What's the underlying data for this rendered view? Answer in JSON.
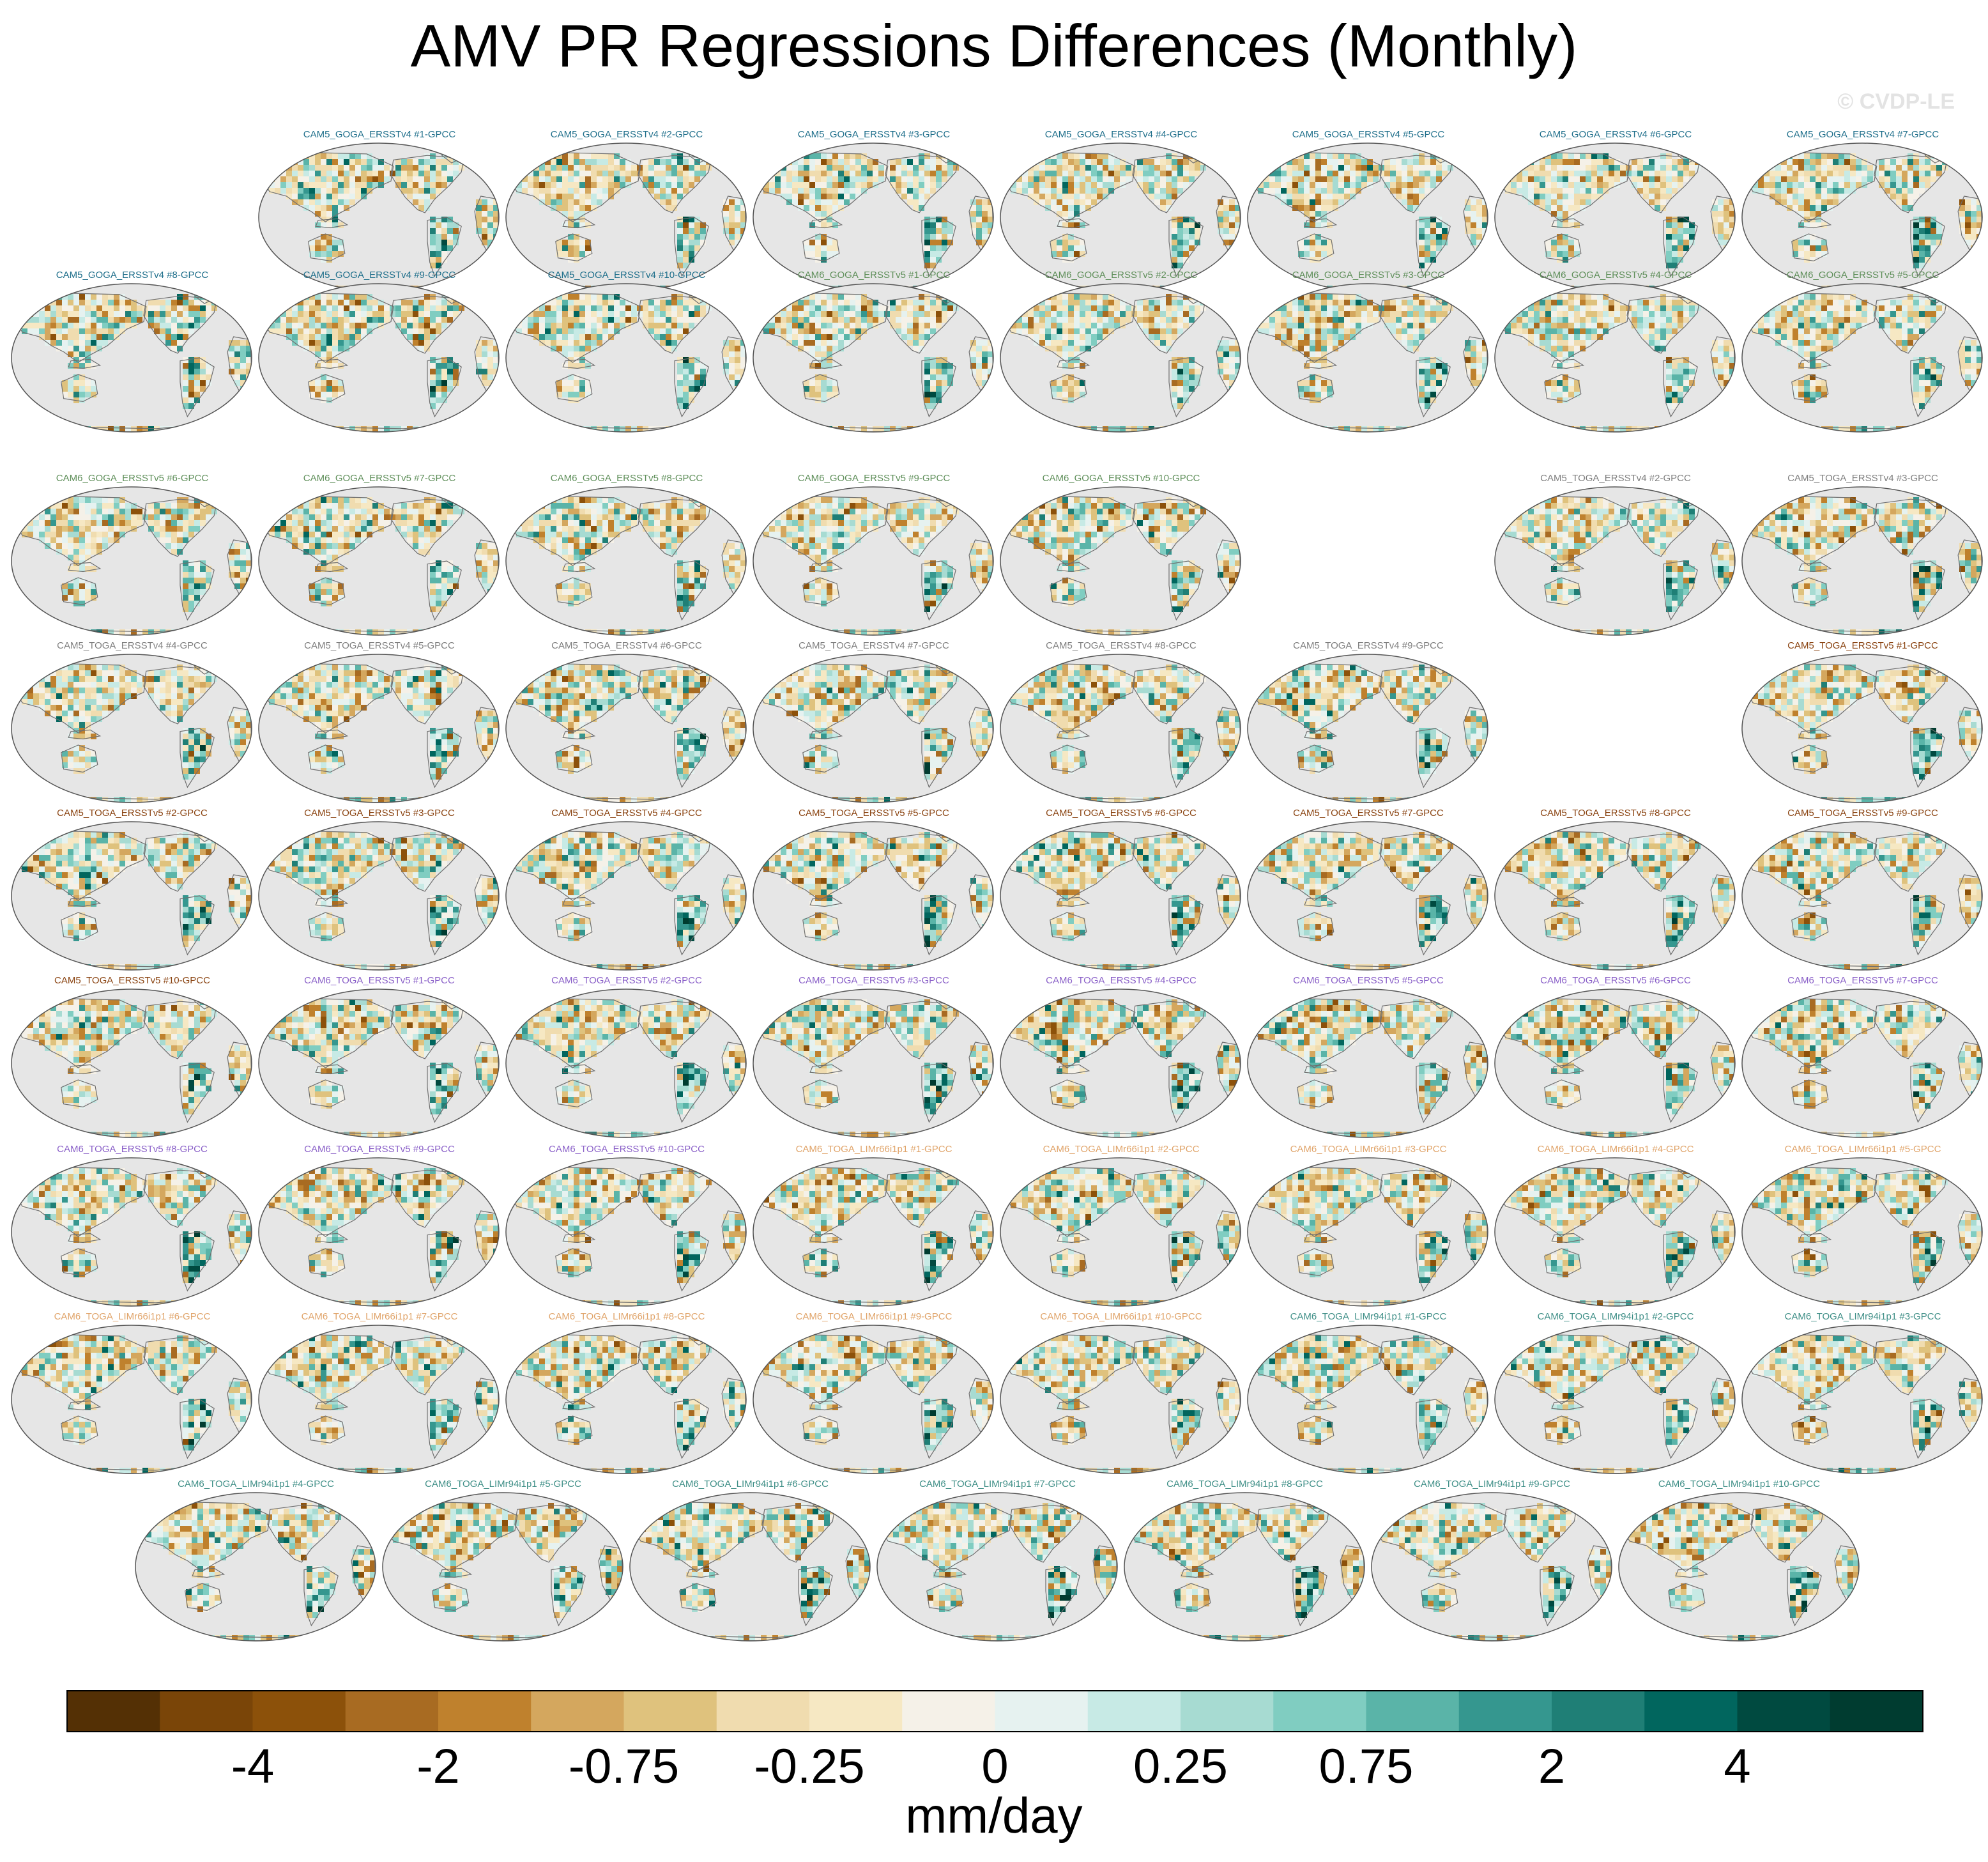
{
  "title": "AMV PR Regressions Differences (Monthly)",
  "watermark": "© CVDP-LE",
  "chart_data": {
    "type": "heatmap",
    "projection": "Robinson, Pacific-centered global maps",
    "variable": "PR regression difference vs GPCC",
    "units": "mm/day",
    "colorbar": {
      "levels": [
        -5,
        -4,
        -3,
        -2,
        -1,
        -0.75,
        -0.5,
        -0.25,
        -0.1,
        0,
        0.1,
        0.25,
        0.5,
        0.75,
        1,
        2,
        3,
        4,
        5
      ],
      "tick_labels": [
        "-4",
        "-2",
        "-0.75",
        "-0.25",
        "0",
        "0.25",
        "0.75",
        "2",
        "4"
      ],
      "colors": [
        "#543005",
        "#7a4508",
        "#8c510a",
        "#a86b22",
        "#bf812d",
        "#d4a75e",
        "#dfc27d",
        "#f0dcaf",
        "#f6e8c3",
        "#f5f1e8",
        "#e6f2f0",
        "#c7eae5",
        "#a7dbd2",
        "#80cdc1",
        "#5ab4a8",
        "#35978f",
        "#1f7f76",
        "#01665e",
        "#004a40",
        "#003c30"
      ],
      "label": "mm/day"
    },
    "panel_rows": [
      {
        "slots": [
          1,
          2,
          3,
          4,
          5,
          6,
          7
        ],
        "panels": [
          {
            "title": "CAM5_GOGA_ERSSTv4 #1-GPCC",
            "group": "cam5_goga_v4"
          },
          {
            "title": "CAM5_GOGA_ERSSTv4 #2-GPCC",
            "group": "cam5_goga_v4"
          },
          {
            "title": "CAM5_GOGA_ERSSTv4 #3-GPCC",
            "group": "cam5_goga_v4"
          },
          {
            "title": "CAM5_GOGA_ERSSTv4 #4-GPCC",
            "group": "cam5_goga_v4"
          },
          {
            "title": "CAM5_GOGA_ERSSTv4 #5-GPCC",
            "group": "cam5_goga_v4"
          },
          {
            "title": "CAM5_GOGA_ERSSTv4 #6-GPCC",
            "group": "cam5_goga_v4"
          },
          {
            "title": "CAM5_GOGA_ERSSTv4 #7-GPCC",
            "group": "cam5_goga_v4"
          }
        ]
      },
      {
        "slots": [
          0,
          1,
          2,
          3,
          4,
          5,
          6,
          7
        ],
        "panels": [
          {
            "title": "CAM5_GOGA_ERSSTv4 #8-GPCC",
            "group": "cam5_goga_v4"
          },
          {
            "title": "CAM5_GOGA_ERSSTv4 #9-GPCC",
            "group": "cam5_goga_v4"
          },
          {
            "title": "CAM5_GOGA_ERSSTv4 #10-GPCC",
            "group": "cam5_goga_v4"
          },
          {
            "title": "CAM6_GOGA_ERSSTv5 #1-GPCC",
            "group": "cam6_goga_v5"
          },
          {
            "title": "CAM6_GOGA_ERSSTv5 #2-GPCC",
            "group": "cam6_goga_v5"
          },
          {
            "title": "CAM6_GOGA_ERSSTv5 #3-GPCC",
            "group": "cam6_goga_v5"
          },
          {
            "title": "CAM6_GOGA_ERSSTv5 #4-GPCC",
            "group": "cam6_goga_v5"
          },
          {
            "title": "CAM6_GOGA_ERSSTv5 #5-GPCC",
            "group": "cam6_goga_v5"
          }
        ]
      },
      {
        "slots": [
          0,
          1,
          2,
          3,
          4,
          6,
          7
        ],
        "panels": [
          {
            "title": "CAM6_GOGA_ERSSTv5 #6-GPCC",
            "group": "cam6_goga_v5"
          },
          {
            "title": "CAM6_GOGA_ERSSTv5 #7-GPCC",
            "group": "cam6_goga_v5"
          },
          {
            "title": "CAM6_GOGA_ERSSTv5 #8-GPCC",
            "group": "cam6_goga_v5"
          },
          {
            "title": "CAM6_GOGA_ERSSTv5 #9-GPCC",
            "group": "cam6_goga_v5"
          },
          {
            "title": "CAM6_GOGA_ERSSTv5 #10-GPCC",
            "group": "cam6_goga_v5"
          },
          {
            "title": "CAM5_TOGA_ERSSTv4 #2-GPCC",
            "group": "cam5_toga_v4"
          },
          {
            "title": "CAM5_TOGA_ERSSTv4 #3-GPCC",
            "group": "cam5_toga_v4"
          }
        ]
      },
      {
        "slots": [
          0,
          1,
          2,
          3,
          4,
          5,
          7
        ],
        "panels": [
          {
            "title": "CAM5_TOGA_ERSSTv4 #4-GPCC",
            "group": "cam5_toga_v4"
          },
          {
            "title": "CAM5_TOGA_ERSSTv4 #5-GPCC",
            "group": "cam5_toga_v4"
          },
          {
            "title": "CAM5_TOGA_ERSSTv4 #6-GPCC",
            "group": "cam5_toga_v4"
          },
          {
            "title": "CAM5_TOGA_ERSSTv4 #7-GPCC",
            "group": "cam5_toga_v4"
          },
          {
            "title": "CAM5_TOGA_ERSSTv4 #8-GPCC",
            "group": "cam5_toga_v4"
          },
          {
            "title": "CAM5_TOGA_ERSSTv4 #9-GPCC",
            "group": "cam5_toga_v4"
          },
          {
            "title": "CAM5_TOGA_ERSSTv5 #1-GPCC",
            "group": "cam5_toga_v5"
          }
        ]
      },
      {
        "slots": [
          0,
          1,
          2,
          3,
          4,
          5,
          6,
          7
        ],
        "panels": [
          {
            "title": "CAM5_TOGA_ERSSTv5 #2-GPCC",
            "group": "cam5_toga_v5"
          },
          {
            "title": "CAM5_TOGA_ERSSTv5 #3-GPCC",
            "group": "cam5_toga_v5"
          },
          {
            "title": "CAM5_TOGA_ERSSTv5 #4-GPCC",
            "group": "cam5_toga_v5"
          },
          {
            "title": "CAM5_TOGA_ERSSTv5 #5-GPCC",
            "group": "cam5_toga_v5"
          },
          {
            "title": "CAM5_TOGA_ERSSTv5 #6-GPCC",
            "group": "cam5_toga_v5"
          },
          {
            "title": "CAM5_TOGA_ERSSTv5 #7-GPCC",
            "group": "cam5_toga_v5"
          },
          {
            "title": "CAM5_TOGA_ERSSTv5 #8-GPCC",
            "group": "cam5_toga_v5"
          },
          {
            "title": "CAM5_TOGA_ERSSTv5 #9-GPCC",
            "group": "cam5_toga_v5"
          }
        ]
      },
      {
        "slots": [
          0,
          1,
          2,
          3,
          4,
          5,
          6,
          7
        ],
        "panels": [
          {
            "title": "CAM5_TOGA_ERSSTv5 #10-GPCC",
            "group": "cam5_toga_v5"
          },
          {
            "title": "CAM6_TOGA_ERSSTv5 #1-GPCC",
            "group": "cam6_toga_v5"
          },
          {
            "title": "CAM6_TOGA_ERSSTv5 #2-GPCC",
            "group": "cam6_toga_v5"
          },
          {
            "title": "CAM6_TOGA_ERSSTv5 #3-GPCC",
            "group": "cam6_toga_v5"
          },
          {
            "title": "CAM6_TOGA_ERSSTv5 #4-GPCC",
            "group": "cam6_toga_v5"
          },
          {
            "title": "CAM6_TOGA_ERSSTv5 #5-GPCC",
            "group": "cam6_toga_v5"
          },
          {
            "title": "CAM6_TOGA_ERSSTv5 #6-GPCC",
            "group": "cam6_toga_v5"
          },
          {
            "title": "CAM6_TOGA_ERSSTv5 #7-GPCC",
            "group": "cam6_toga_v5"
          }
        ]
      },
      {
        "slots": [
          0,
          1,
          2,
          3,
          4,
          5,
          6,
          7
        ],
        "panels": [
          {
            "title": "CAM6_TOGA_ERSSTv5 #8-GPCC",
            "group": "cam6_toga_v5"
          },
          {
            "title": "CAM6_TOGA_ERSSTv5 #9-GPCC",
            "group": "cam6_toga_v5"
          },
          {
            "title": "CAM6_TOGA_ERSSTv5 #10-GPCC",
            "group": "cam6_toga_v5"
          },
          {
            "title": "CAM6_TOGA_LIMr66i1p1 #1-GPCC",
            "group": "cam6_toga_limr66"
          },
          {
            "title": "CAM6_TOGA_LIMr66i1p1 #2-GPCC",
            "group": "cam6_toga_limr66"
          },
          {
            "title": "CAM6_TOGA_LIMr66i1p1 #3-GPCC",
            "group": "cam6_toga_limr66"
          },
          {
            "title": "CAM6_TOGA_LIMr66i1p1 #4-GPCC",
            "group": "cam6_toga_limr66"
          },
          {
            "title": "CAM6_TOGA_LIMr66i1p1 #5-GPCC",
            "group": "cam6_toga_limr66"
          }
        ]
      },
      {
        "slots": [
          0,
          1,
          2,
          3,
          4,
          5,
          6,
          7
        ],
        "panels": [
          {
            "title": "CAM6_TOGA_LIMr66i1p1 #6-GPCC",
            "group": "cam6_toga_limr66"
          },
          {
            "title": "CAM6_TOGA_LIMr66i1p1 #7-GPCC",
            "group": "cam6_toga_limr66"
          },
          {
            "title": "CAM6_TOGA_LIMr66i1p1 #8-GPCC",
            "group": "cam6_toga_limr66"
          },
          {
            "title": "CAM6_TOGA_LIMr66i1p1 #9-GPCC",
            "group": "cam6_toga_limr66"
          },
          {
            "title": "CAM6_TOGA_LIMr66i1p1 #10-GPCC",
            "group": "cam6_toga_limr66"
          },
          {
            "title": "CAM6_TOGA_LIMr94i1p1 #1-GPCC",
            "group": "cam6_toga_limr94"
          },
          {
            "title": "CAM6_TOGA_LIMr94i1p1 #2-GPCC",
            "group": "cam6_toga_limr94"
          },
          {
            "title": "CAM6_TOGA_LIMr94i1p1 #3-GPCC",
            "group": "cam6_toga_limr94"
          }
        ]
      },
      {
        "slots": [
          0.5,
          1.5,
          2.5,
          3.5,
          4.5,
          5.5,
          6.5
        ],
        "panels": [
          {
            "title": "CAM6_TOGA_LIMr94i1p1 #4-GPCC",
            "group": "cam6_toga_limr94"
          },
          {
            "title": "CAM6_TOGA_LIMr94i1p1 #5-GPCC",
            "group": "cam6_toga_limr94"
          },
          {
            "title": "CAM6_TOGA_LIMr94i1p1 #6-GPCC",
            "group": "cam6_toga_limr94"
          },
          {
            "title": "CAM6_TOGA_LIMr94i1p1 #7-GPCC",
            "group": "cam6_toga_limr94"
          },
          {
            "title": "CAM6_TOGA_LIMr94i1p1 #8-GPCC",
            "group": "cam6_toga_limr94"
          },
          {
            "title": "CAM6_TOGA_LIMr94i1p1 #9-GPCC",
            "group": "cam6_toga_limr94"
          },
          {
            "title": "CAM6_TOGA_LIMr94i1p1 #10-GPCC",
            "group": "cam6_toga_limr94"
          }
        ]
      }
    ],
    "group_colors": {
      "cam5_goga_v4": "#1f6f8b",
      "cam6_goga_v5": "#5f8f5a",
      "cam5_toga_v4": "#7f7f7f",
      "cam5_toga_v5": "#8b4513",
      "cam6_toga_v5": "#8a60c8",
      "cam6_toga_limr66": "#e0a46a",
      "cam6_toga_limr94": "#3f8f87"
    }
  }
}
